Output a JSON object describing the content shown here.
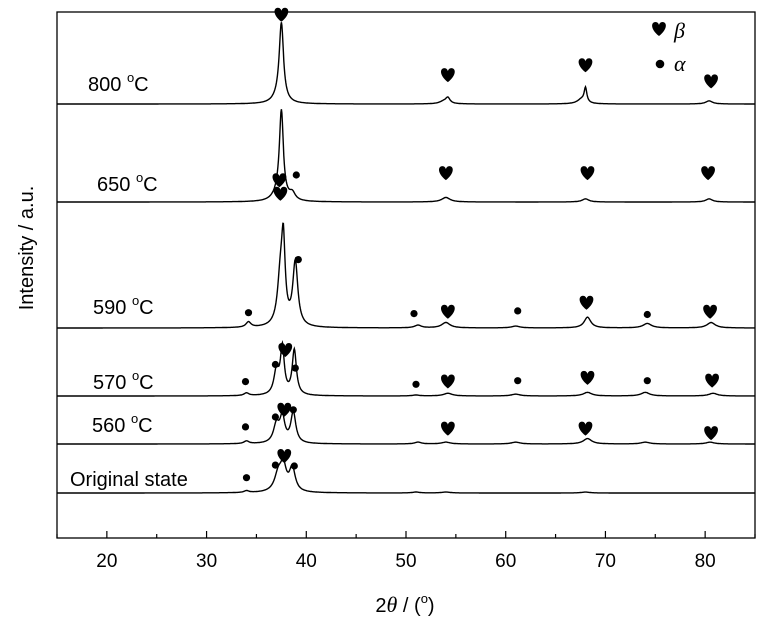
{
  "chart_data": {
    "type": "line",
    "xlabel_prefix": "2",
    "xlabel_theta": "θ",
    "xlabel_suffix": " / (",
    "xlabel_unit": "o",
    "xlabel_close": ")",
    "ylabel": "Intensity / a.u.",
    "xlim": [
      15,
      85
    ],
    "xticks": [
      20,
      30,
      40,
      50,
      60,
      70,
      80
    ],
    "legend": {
      "placement": "top-right",
      "entries": [
        {
          "marker": "heart",
          "label": "β"
        },
        {
          "marker": "dot",
          "label": "α"
        }
      ]
    },
    "series": [
      {
        "name": "800 °C",
        "label_main": "800 ",
        "label_sup": "o",
        "label_unit": "C",
        "baseline": 1.0,
        "peaks": [
          [
            37.5,
            8.6,
            0.26
          ],
          [
            37.2,
            0.6,
            0.6
          ],
          [
            54.2,
            0.6,
            0.25
          ],
          [
            53.8,
            0.3,
            0.5
          ],
          [
            68.0,
            1.6,
            0.16
          ],
          [
            67.6,
            0.5,
            0.5
          ],
          [
            80.4,
            0.35,
            0.4
          ]
        ],
        "markers": [
          {
            "type": "heart",
            "x": 37.5,
            "h": 9.8
          },
          {
            "type": "heart",
            "x": 54.2,
            "h": 3.1
          },
          {
            "type": "heart",
            "x": 68.0,
            "h": 4.2
          },
          {
            "type": "heart",
            "x": 80.6,
            "h": 2.4
          }
        ]
      },
      {
        "name": "650 °C",
        "label_main": "650 ",
        "label_sup": "o",
        "label_unit": "C",
        "baseline": 1.0,
        "peaks": [
          [
            37.5,
            9.6,
            0.24
          ],
          [
            37.2,
            0.8,
            0.6
          ],
          [
            38.6,
            0.8,
            0.35
          ],
          [
            54.0,
            0.5,
            0.5
          ],
          [
            68.0,
            0.35,
            0.4
          ],
          [
            80.4,
            0.35,
            0.4
          ]
        ],
        "markers": [
          {
            "type": "heart",
            "x": 37.3,
            "h": 2.3
          },
          {
            "type": "dot",
            "x": 39.0,
            "h": 3.0
          },
          {
            "type": "heart",
            "x": 54.0,
            "h": 3.1
          },
          {
            "type": "heart",
            "x": 68.2,
            "h": 3.1
          },
          {
            "type": "heart",
            "x": 80.3,
            "h": 3.1
          }
        ]
      },
      {
        "name": "590 °C",
        "label_main": "590 ",
        "label_sup": "o",
        "label_unit": "C",
        "baseline": 1.0,
        "peaks": [
          [
            34.2,
            0.6,
            0.3
          ],
          [
            37.4,
            5.2,
            0.35
          ],
          [
            37.7,
            8.2,
            0.22
          ],
          [
            38.9,
            7.1,
            0.3
          ],
          [
            51.2,
            0.3,
            0.4
          ],
          [
            54.0,
            0.6,
            0.5
          ],
          [
            61.0,
            0.2,
            0.5
          ],
          [
            68.2,
            1.2,
            0.4
          ],
          [
            74.2,
            0.5,
            0.5
          ],
          [
            80.6,
            0.6,
            0.5
          ]
        ],
        "markers": [
          {
            "type": "dot",
            "x": 34.2,
            "h": 1.7
          },
          {
            "type": "heart",
            "x": 37.4,
            "h": 14.8
          },
          {
            "type": "dot",
            "x": 39.2,
            "h": 7.6
          },
          {
            "type": "dot",
            "x": 50.8,
            "h": 1.6
          },
          {
            "type": "heart",
            "x": 54.2,
            "h": 1.7
          },
          {
            "type": "dot",
            "x": 61.2,
            "h": 1.9
          },
          {
            "type": "heart",
            "x": 68.1,
            "h": 2.7
          },
          {
            "type": "dot",
            "x": 74.2,
            "h": 1.5
          },
          {
            "type": "heart",
            "x": 80.5,
            "h": 1.7
          }
        ]
      },
      {
        "name": "570 °C",
        "label_main": "570 ",
        "label_sup": "o",
        "label_unit": "C",
        "baseline": 1.0,
        "peaks": [
          [
            34.0,
            0.3,
            0.3
          ],
          [
            37.0,
            2.6,
            0.3
          ],
          [
            37.6,
            5.2,
            0.24
          ],
          [
            38.8,
            5.0,
            0.25
          ],
          [
            51.0,
            0.1,
            0.4
          ],
          [
            54.2,
            0.3,
            0.5
          ],
          [
            61.0,
            0.2,
            0.5
          ],
          [
            68.2,
            0.4,
            0.5
          ],
          [
            74.0,
            0.4,
            0.5
          ],
          [
            80.8,
            0.3,
            0.5
          ]
        ],
        "markers": [
          {
            "type": "dot",
            "x": 33.9,
            "h": 1.6
          },
          {
            "type": "dot",
            "x": 36.9,
            "h": 3.5
          },
          {
            "type": "heart",
            "x": 37.9,
            "h": 5.0
          },
          {
            "type": "dot",
            "x": 38.9,
            "h": 3.1
          },
          {
            "type": "dot",
            "x": 51.0,
            "h": 1.3
          },
          {
            "type": "heart",
            "x": 54.2,
            "h": 1.5
          },
          {
            "type": "dot",
            "x": 61.2,
            "h": 1.7
          },
          {
            "type": "heart",
            "x": 68.2,
            "h": 1.9
          },
          {
            "type": "dot",
            "x": 74.2,
            "h": 1.7
          },
          {
            "type": "heart",
            "x": 80.7,
            "h": 1.6
          }
        ]
      },
      {
        "name": "560 °C",
        "label_main": "560 ",
        "label_sup": "o",
        "label_unit": "C",
        "baseline": 1.0,
        "peaks": [
          [
            34.0,
            0.3,
            0.3
          ],
          [
            37.0,
            2.0,
            0.35
          ],
          [
            37.6,
            2.8,
            0.3
          ],
          [
            38.7,
            3.4,
            0.3
          ],
          [
            51.2,
            0.2,
            0.4
          ],
          [
            54.0,
            0.2,
            0.5
          ],
          [
            61.0,
            0.2,
            0.5
          ],
          [
            68.2,
            0.6,
            0.5
          ],
          [
            74.0,
            0.2,
            0.5
          ],
          [
            80.5,
            0.2,
            0.5
          ]
        ],
        "markers": [
          {
            "type": "dot",
            "x": 33.9,
            "h": 1.9
          },
          {
            "type": "dot",
            "x": 36.9,
            "h": 3.0
          },
          {
            "type": "heart",
            "x": 37.8,
            "h": 3.7
          },
          {
            "type": "dot",
            "x": 38.7,
            "h": 3.8
          },
          {
            "type": "heart",
            "x": 54.2,
            "h": 1.6
          },
          {
            "type": "heart",
            "x": 68.0,
            "h": 1.6
          },
          {
            "type": "heart",
            "x": 80.6,
            "h": 1.1
          }
        ]
      },
      {
        "name": "Original state",
        "label_main": "Original state",
        "label_sup": "",
        "label_unit": "",
        "baseline": 1.0,
        "peaks": [
          [
            34.0,
            0.2,
            0.3
          ],
          [
            37.2,
            2.0,
            0.45
          ],
          [
            37.7,
            2.6,
            0.35
          ],
          [
            38.6,
            2.6,
            0.35
          ],
          [
            51.0,
            0.1,
            0.4
          ],
          [
            54.0,
            0.1,
            0.5
          ],
          [
            68.0,
            0.1,
            0.5
          ]
        ],
        "markers": [
          {
            "type": "dot",
            "x": 34.0,
            "h": 1.7
          },
          {
            "type": "dot",
            "x": 36.9,
            "h": 3.1
          },
          {
            "type": "heart",
            "x": 37.8,
            "h": 4.0
          },
          {
            "type": "dot",
            "x": 38.8,
            "h": 3.0
          }
        ]
      }
    ]
  }
}
